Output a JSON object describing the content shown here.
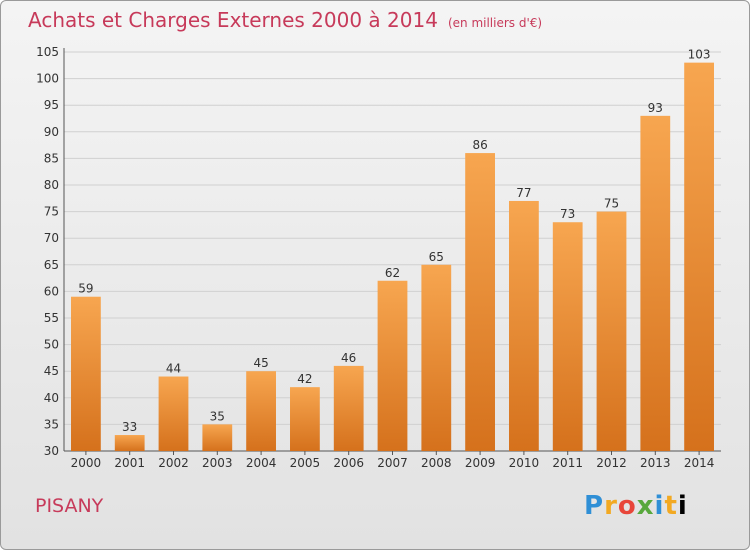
{
  "header": {
    "title": "Achats et Charges Externes 2000 à 2014",
    "unit": "(en milliers d'€)"
  },
  "footer": {
    "commune": "PISANY",
    "logo_letters": [
      "P",
      "r",
      "o",
      "x",
      "i",
      "t",
      "i"
    ]
  },
  "colors": {
    "bar_light": "#f7a650",
    "bar_dark": "#d5711c",
    "title": "#c73a5a"
  },
  "chart_data": {
    "type": "bar",
    "title": "Achats et Charges Externes 2000 à 2014",
    "xlabel": "",
    "ylabel": "",
    "categories": [
      "2000",
      "2001",
      "2002",
      "2003",
      "2004",
      "2005",
      "2006",
      "2007",
      "2008",
      "2009",
      "2010",
      "2011",
      "2012",
      "2013",
      "2014"
    ],
    "values": [
      59,
      33,
      44,
      35,
      45,
      42,
      46,
      62,
      65,
      86,
      77,
      73,
      75,
      93,
      103
    ],
    "ylim": [
      30,
      105
    ],
    "yticks": [
      30,
      35,
      40,
      45,
      50,
      55,
      60,
      65,
      70,
      75,
      80,
      85,
      90,
      95,
      100,
      105
    ],
    "grid": true,
    "legend": "none"
  }
}
